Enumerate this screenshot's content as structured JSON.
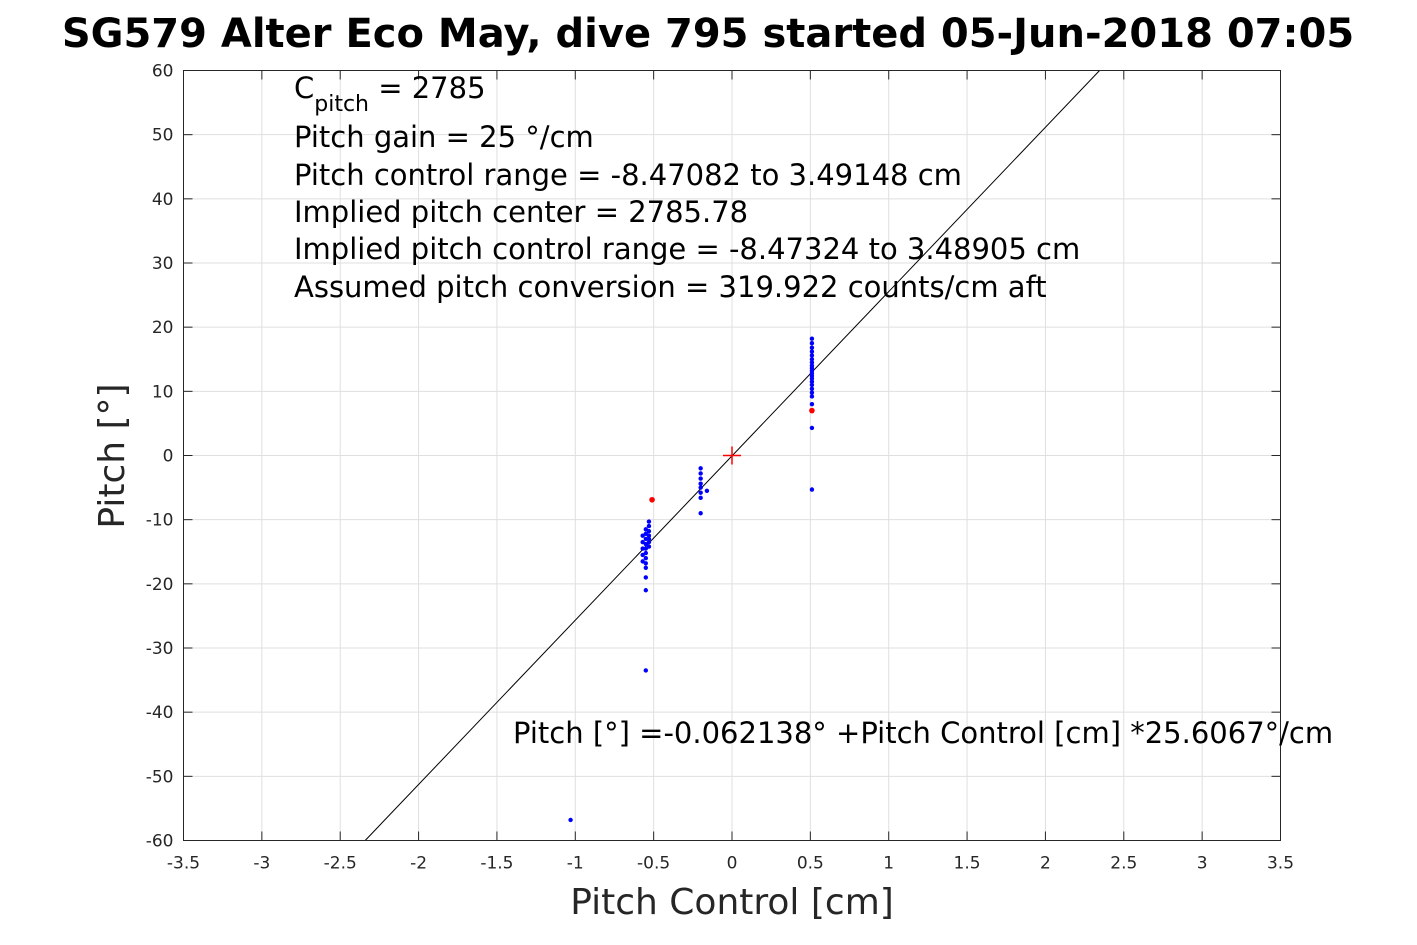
{
  "chart_data": {
    "type": "scatter",
    "title": "SG579 Alter Eco May, dive 795 started 05-Jun-2018 07:05",
    "xlabel": "Pitch Control [cm]",
    "ylabel": "Pitch [°]",
    "xlim": [
      -3.5,
      3.5
    ],
    "ylim": [
      -60,
      60
    ],
    "xticks": [
      -3.5,
      -3,
      -2.5,
      -2,
      -1.5,
      -1,
      -0.5,
      0,
      0.5,
      1,
      1.5,
      2,
      2.5,
      3,
      3.5
    ],
    "xtick_labels": [
      "-3.5",
      "-3",
      "-2.5",
      "-2",
      "-1.5",
      "-1",
      "-0.5",
      "0",
      "0.5",
      "1",
      "1.5",
      "2",
      "2.5",
      "3",
      "3.5"
    ],
    "yticks": [
      60,
      50,
      40,
      30,
      20,
      10,
      0,
      -10,
      -20,
      -30,
      -40,
      -50,
      -60
    ],
    "ytick_labels": [
      "60",
      "50",
      "40",
      "30",
      "20",
      "10",
      "0",
      "-10",
      "-20",
      "-30",
      "-40",
      "-50",
      "-60"
    ],
    "grid": true,
    "fit": {
      "intercept": -0.062138,
      "slope": 25.6067
    },
    "center_marker": {
      "x": 0,
      "y": 0,
      "color": "#ff0000"
    },
    "series": [
      {
        "color": "#0000ff",
        "points": [
          [
            0.51,
            18.2
          ],
          [
            0.51,
            17.5
          ],
          [
            0.51,
            16.8
          ],
          [
            0.51,
            16.2
          ],
          [
            0.51,
            15.6
          ],
          [
            0.51,
            15.0
          ],
          [
            0.51,
            14.5
          ],
          [
            0.51,
            14.0
          ],
          [
            0.51,
            13.6
          ],
          [
            0.51,
            13.2
          ],
          [
            0.51,
            12.8
          ],
          [
            0.51,
            12.4
          ],
          [
            0.51,
            12.0
          ],
          [
            0.51,
            11.5
          ],
          [
            0.51,
            11.0
          ],
          [
            0.51,
            10.4
          ],
          [
            0.51,
            9.8
          ],
          [
            0.51,
            9.2
          ],
          [
            0.51,
            8.0
          ],
          [
            0.51,
            4.3
          ],
          [
            0.51,
            -5.3
          ],
          [
            -0.2,
            -2.0
          ],
          [
            -0.2,
            -2.8
          ],
          [
            -0.2,
            -3.6
          ],
          [
            -0.2,
            -4.4
          ],
          [
            -0.2,
            -5.0
          ],
          [
            -0.2,
            -5.8
          ],
          [
            -0.2,
            -6.6
          ],
          [
            -0.2,
            -9.0
          ],
          [
            -0.16,
            -5.5
          ],
          [
            -0.53,
            -10.3
          ],
          [
            -0.53,
            -11.0
          ],
          [
            -0.53,
            -11.8
          ],
          [
            -0.53,
            -12.5
          ],
          [
            -0.53,
            -13.0
          ],
          [
            -0.53,
            -13.5
          ],
          [
            -0.53,
            -14.2
          ],
          [
            -0.55,
            -11.5
          ],
          [
            -0.55,
            -12.2
          ],
          [
            -0.55,
            -13.0
          ],
          [
            -0.55,
            -13.8
          ],
          [
            -0.55,
            -14.5
          ],
          [
            -0.55,
            -15.2
          ],
          [
            -0.55,
            -16.0
          ],
          [
            -0.55,
            -16.8
          ],
          [
            -0.55,
            -17.5
          ],
          [
            -0.55,
            -19.0
          ],
          [
            -0.55,
            -21.0
          ],
          [
            -0.57,
            -12.5
          ],
          [
            -0.57,
            -13.5
          ],
          [
            -0.57,
            -14.5
          ],
          [
            -0.57,
            -15.5
          ],
          [
            -0.57,
            -16.5
          ],
          [
            -0.55,
            -33.5
          ],
          [
            -1.03,
            -56.8
          ]
        ]
      },
      {
        "color": "#ff0000",
        "points": [
          [
            -0.51,
            -6.9
          ],
          [
            0.51,
            7.0
          ]
        ]
      }
    ],
    "annotations": {
      "c_pitch_prefix": "C",
      "c_pitch_sub": "pitch",
      "c_pitch_value": " = 2785",
      "pitch_gain": "Pitch gain = 25 °/cm",
      "pitch_control_range": "Pitch control range = -8.47082 to 3.49148 cm",
      "implied_center": "Implied pitch center = 2785.78",
      "implied_range": "Implied pitch control range = -8.47324 to 3.48905 cm",
      "assumed_conversion": "Assumed pitch conversion = 319.922 counts/cm aft",
      "fit_equation": "Pitch [°] =-0.062138° +Pitch Control [cm] *25.6067°/cm"
    }
  }
}
